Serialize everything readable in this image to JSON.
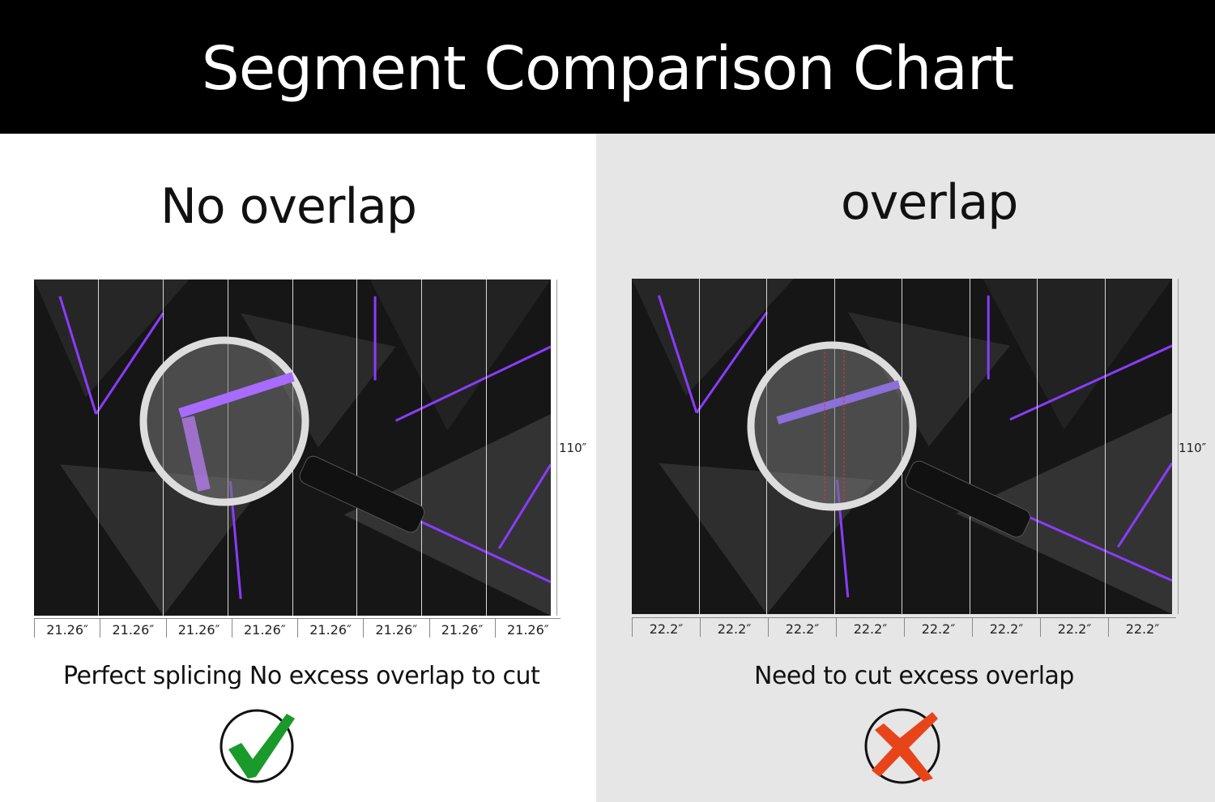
{
  "header": {
    "title": "Segment Comparison Chart"
  },
  "left": {
    "title": "No overlap",
    "caption": "Perfect splicing No excess overlap to cut",
    "height_label": "110″",
    "widths": [
      "21.26″",
      "21.26″",
      "21.26″",
      "21.26″",
      "21.26″",
      "21.26″",
      "21.26″",
      "21.26″"
    ],
    "icon": "check-icon",
    "icon_color": "#1a9a2a"
  },
  "right": {
    "title": "overlap",
    "caption": "Need to cut excess overlap",
    "height_label": "110″",
    "widths": [
      "22.2″",
      "22.2″",
      "22.2″",
      "22.2″",
      "22.2″",
      "22.2″",
      "22.2″",
      "22.2″"
    ],
    "icon": "cross-icon",
    "icon_color": "#e8441a"
  },
  "colors": {
    "accent": "#8a3cff",
    "right_bg": "#e6e6e6"
  }
}
